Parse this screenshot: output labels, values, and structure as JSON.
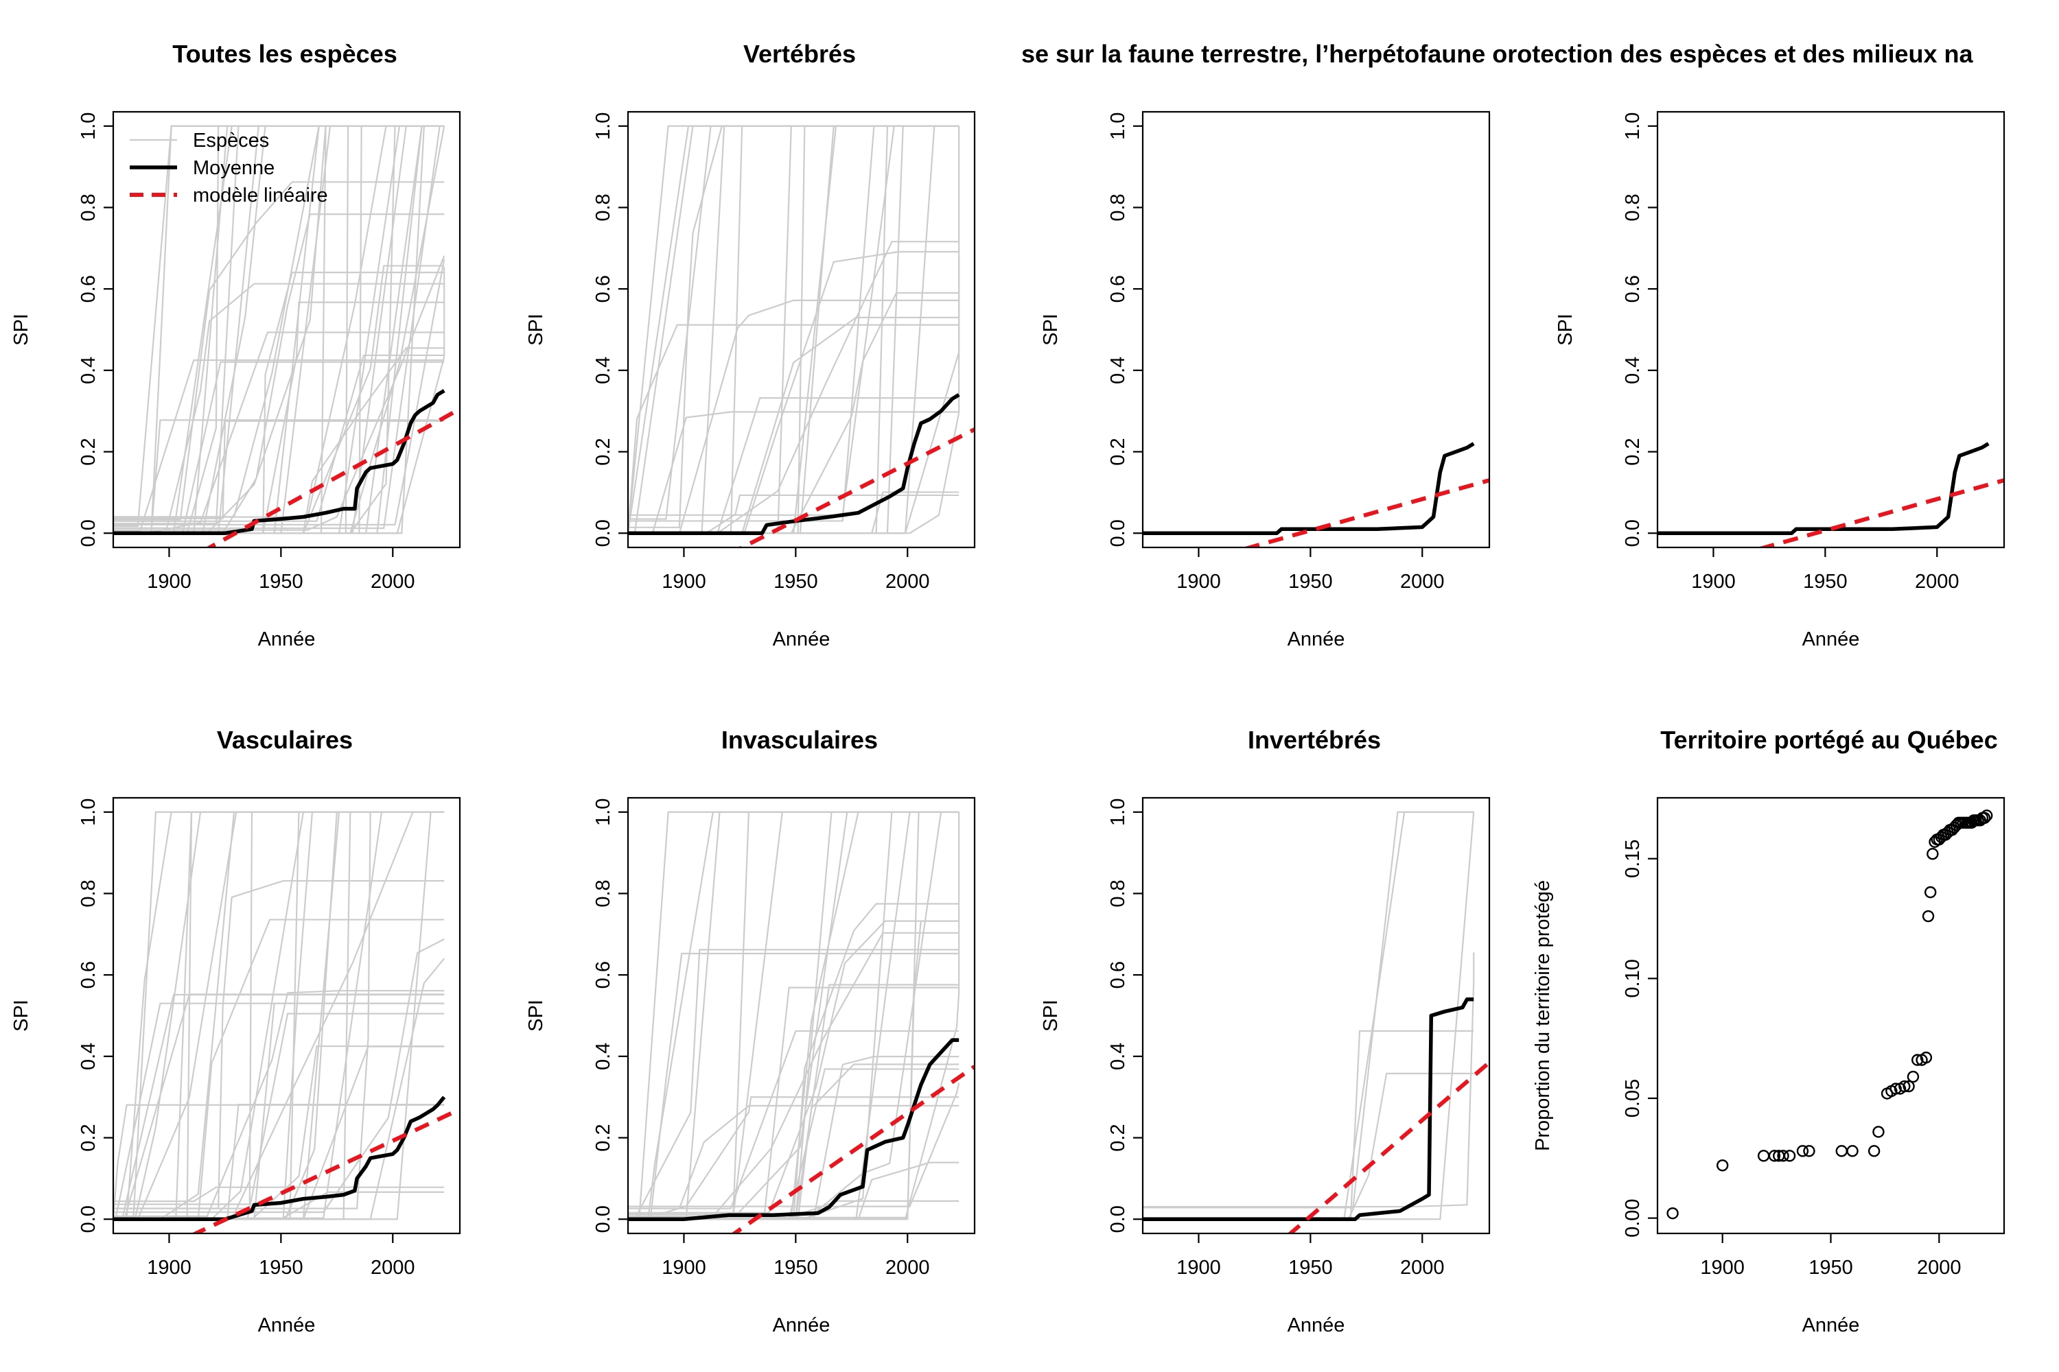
{
  "chart_data": [
    {
      "type": "line",
      "title": "Toutes les espèces",
      "xlabel": "Année",
      "ylabel": "SPI",
      "xlim": [
        1875,
        2030
      ],
      "ylim": [
        -0.035,
        1.035
      ],
      "xticks": [
        "1900",
        "1950",
        "2000"
      ],
      "yticks": [
        "0.0",
        "0.2",
        "0.4",
        "0.6",
        "0.8",
        "1.0"
      ],
      "grid": false,
      "legend": {
        "position": "top-left",
        "entries": [
          {
            "label": "Espèces",
            "color": "#cccccc",
            "style": "solid-thin"
          },
          {
            "label": "Moyenne",
            "color": "#000000",
            "style": "solid-thick"
          },
          {
            "label": "modèle linéaire",
            "color": "#e8141e",
            "style": "dashed"
          }
        ]
      },
      "background_species": {
        "count": 40,
        "color": "#cccccc"
      },
      "series": [
        {
          "name": "Moyenne",
          "color": "#000000",
          "x": [
            1875,
            1925,
            1937,
            1938,
            1950,
            1960,
            1970,
            1978,
            1983,
            1984,
            1988,
            1990,
            2000,
            2002,
            2005,
            2008,
            2010,
            2012,
            2015,
            2018,
            2020,
            2023
          ],
          "y": [
            0,
            0,
            0.01,
            0.03,
            0.035,
            0.04,
            0.05,
            0.06,
            0.06,
            0.11,
            0.15,
            0.16,
            0.17,
            0.18,
            0.22,
            0.27,
            0.29,
            0.3,
            0.31,
            0.32,
            0.34,
            0.35
          ]
        },
        {
          "name": "modèle linéaire",
          "color": "#e8141e",
          "x": [
            1905,
            2030
          ],
          "y": [
            -0.075,
            0.305
          ]
        }
      ]
    },
    {
      "type": "line",
      "title": "Vertébrés",
      "xlabel": "Année",
      "ylabel": "SPI",
      "xlim": [
        1875,
        2030
      ],
      "ylim": [
        -0.035,
        1.035
      ],
      "xticks": [
        "1900",
        "1950",
        "2000"
      ],
      "yticks": [
        "0.0",
        "0.2",
        "0.4",
        "0.6",
        "0.8",
        "1.0"
      ],
      "grid": false,
      "background_species": {
        "count": 28,
        "color": "#cccccc"
      },
      "series": [
        {
          "name": "Moyenne",
          "color": "#000000",
          "x": [
            1875,
            1935,
            1937,
            1950,
            1965,
            1978,
            1985,
            1992,
            1998,
            2000,
            2003,
            2006,
            2010,
            2015,
            2020,
            2023
          ],
          "y": [
            0,
            0,
            0.02,
            0.03,
            0.04,
            0.05,
            0.07,
            0.09,
            0.11,
            0.16,
            0.22,
            0.27,
            0.28,
            0.3,
            0.33,
            0.34
          ]
        },
        {
          "name": "modèle linéaire",
          "color": "#e8141e",
          "x": [
            1910,
            2030
          ],
          "y": [
            -0.08,
            0.255
          ]
        }
      ]
    },
    {
      "type": "line",
      "title": "se sur la faune terrestre, l’herpétofaune",
      "xlabel": "Année",
      "ylabel": "SPI",
      "xlim": [
        1875,
        2030
      ],
      "ylim": [
        -0.035,
        1.035
      ],
      "xticks": [
        "1900",
        "1950",
        "2000"
      ],
      "yticks": [
        "0.0",
        "0.2",
        "0.4",
        "0.6",
        "0.8",
        "1.0"
      ],
      "grid": false,
      "background_species": {
        "count": 0,
        "color": "#cccccc"
      },
      "series": [
        {
          "name": "Moyenne",
          "color": "#000000",
          "x": [
            1875,
            1935,
            1937,
            1980,
            2000,
            2005,
            2008,
            2010,
            2015,
            2020,
            2023
          ],
          "y": [
            0,
            0,
            0.01,
            0.01,
            0.015,
            0.04,
            0.15,
            0.19,
            0.2,
            0.21,
            0.22
          ]
        },
        {
          "name": "modèle linéaire",
          "color": "#e8141e",
          "x": [
            1910,
            2030
          ],
          "y": [
            -0.055,
            0.13
          ]
        }
      ]
    },
    {
      "type": "line",
      "title": "orotection des espèces et des milieux na",
      "xlabel": "Année",
      "ylabel": "SPI",
      "xlim": [
        1875,
        2030
      ],
      "ylim": [
        -0.035,
        1.035
      ],
      "xticks": [
        "1900",
        "1950",
        "2000"
      ],
      "yticks": [
        "0.0",
        "0.2",
        "0.4",
        "0.6",
        "0.8",
        "1.0"
      ],
      "grid": false,
      "background_species": {
        "count": 0,
        "color": "#cccccc"
      },
      "series": [
        {
          "name": "Moyenne",
          "color": "#000000",
          "x": [
            1875,
            1935,
            1937,
            1980,
            2000,
            2005,
            2008,
            2010,
            2015,
            2020,
            2023
          ],
          "y": [
            0,
            0,
            0.01,
            0.01,
            0.015,
            0.04,
            0.15,
            0.19,
            0.2,
            0.21,
            0.22
          ]
        },
        {
          "name": "modèle linéaire",
          "color": "#e8141e",
          "x": [
            1910,
            2030
          ],
          "y": [
            -0.055,
            0.13
          ]
        }
      ]
    },
    {
      "type": "line",
      "title": "Vasculaires",
      "xlabel": "Année",
      "ylabel": "SPI",
      "xlim": [
        1875,
        2030
      ],
      "ylim": [
        -0.035,
        1.035
      ],
      "xticks": [
        "1900",
        "1950",
        "2000"
      ],
      "yticks": [
        "0.0",
        "0.2",
        "0.4",
        "0.6",
        "0.8",
        "1.0"
      ],
      "grid": false,
      "background_species": {
        "count": 34,
        "color": "#cccccc"
      },
      "series": [
        {
          "name": "Moyenne",
          "color": "#000000",
          "x": [
            1875,
            1925,
            1937,
            1938,
            1950,
            1960,
            1970,
            1978,
            1983,
            1984,
            1988,
            1990,
            2000,
            2002,
            2005,
            2008,
            2012,
            2015,
            2018,
            2020,
            2023
          ],
          "y": [
            0,
            0,
            0.02,
            0.035,
            0.04,
            0.05,
            0.055,
            0.06,
            0.07,
            0.1,
            0.13,
            0.15,
            0.16,
            0.17,
            0.2,
            0.24,
            0.25,
            0.26,
            0.27,
            0.28,
            0.3
          ]
        },
        {
          "name": "modèle linéaire",
          "color": "#e8141e",
          "x": [
            1910,
            2030
          ],
          "y": [
            -0.04,
            0.27
          ]
        }
      ]
    },
    {
      "type": "line",
      "title": "Invasculaires",
      "xlabel": "Année",
      "ylabel": "SPI",
      "xlim": [
        1875,
        2030
      ],
      "ylim": [
        -0.035,
        1.035
      ],
      "xticks": [
        "1900",
        "1950",
        "2000"
      ],
      "yticks": [
        "0.0",
        "0.2",
        "0.4",
        "0.6",
        "0.8",
        "1.0"
      ],
      "grid": false,
      "background_species": {
        "count": 30,
        "color": "#cccccc"
      },
      "series": [
        {
          "name": "Moyenne",
          "color": "#000000",
          "x": [
            1875,
            1900,
            1920,
            1940,
            1960,
            1965,
            1970,
            1975,
            1980,
            1982,
            1990,
            1998,
            2000,
            2003,
            2006,
            2010,
            2015,
            2020,
            2023
          ],
          "y": [
            0,
            0,
            0.01,
            0.01,
            0.015,
            0.03,
            0.06,
            0.07,
            0.08,
            0.17,
            0.19,
            0.2,
            0.23,
            0.28,
            0.33,
            0.38,
            0.41,
            0.44,
            0.44
          ]
        },
        {
          "name": "modèle linéaire",
          "color": "#e8141e",
          "x": [
            1920,
            2030
          ],
          "y": [
            -0.045,
            0.375
          ]
        }
      ]
    },
    {
      "type": "line",
      "title": "Invertébrés",
      "xlabel": "Année",
      "ylabel": "SPI",
      "xlim": [
        1875,
        2030
      ],
      "ylim": [
        -0.035,
        1.035
      ],
      "xticks": [
        "1900",
        "1950",
        "2000"
      ],
      "yticks": [
        "0.0",
        "0.2",
        "0.4",
        "0.6",
        "0.8",
        "1.0"
      ],
      "grid": false,
      "background_species": {
        "count": 6,
        "color": "#cccccc"
      },
      "series": [
        {
          "name": "Moyenne",
          "color": "#000000",
          "x": [
            1875,
            1970,
            1972,
            1990,
            2000,
            2003,
            2004,
            2010,
            2018,
            2020,
            2023
          ],
          "y": [
            0,
            0,
            0.01,
            0.02,
            0.05,
            0.06,
            0.5,
            0.51,
            0.52,
            0.54,
            0.54
          ]
        },
        {
          "name": "modèle linéaire",
          "color": "#e8141e",
          "x": [
            1940,
            2030
          ],
          "y": [
            -0.04,
            0.385
          ]
        }
      ]
    },
    {
      "type": "scatter",
      "title": "Territoire portégé au Québec",
      "xlabel": "Année",
      "ylabel": "Proportion du territoire protégé",
      "xlim": [
        1870,
        2030
      ],
      "ylim": [
        -0.0064,
        0.1754
      ],
      "xticks": [
        "1900",
        "1950",
        "2000"
      ],
      "yticks": [
        "0.00",
        "0.05",
        "0.10",
        "0.15"
      ],
      "grid": false,
      "series": [
        {
          "name": "",
          "color": "#000000",
          "x": [
            1877,
            1900,
            1919,
            1924,
            1926,
            1928,
            1931,
            1937,
            1940,
            1955,
            1960,
            1970,
            1972,
            1976,
            1978,
            1980,
            1982,
            1984,
            1986,
            1988,
            1990,
            1992,
            1994,
            1995,
            1996,
            1997,
            1998,
            1999,
            2000,
            2001,
            2002,
            2003,
            2004,
            2005,
            2006,
            2007,
            2008,
            2009,
            2010,
            2011,
            2012,
            2013,
            2014,
            2015,
            2016,
            2017,
            2018,
            2019,
            2020,
            2021,
            2022
          ],
          "y": [
            0.002,
            0.022,
            0.026,
            0.026,
            0.026,
            0.026,
            0.026,
            0.028,
            0.028,
            0.028,
            0.028,
            0.028,
            0.036,
            0.052,
            0.053,
            0.054,
            0.054,
            0.055,
            0.055,
            0.059,
            0.066,
            0.066,
            0.067,
            0.126,
            0.136,
            0.152,
            0.157,
            0.158,
            0.158,
            0.159,
            0.16,
            0.16,
            0.161,
            0.162,
            0.162,
            0.163,
            0.164,
            0.165,
            0.165,
            0.165,
            0.165,
            0.165,
            0.165,
            0.165,
            0.166,
            0.166,
            0.166,
            0.166,
            0.167,
            0.167,
            0.168
          ]
        }
      ]
    }
  ]
}
